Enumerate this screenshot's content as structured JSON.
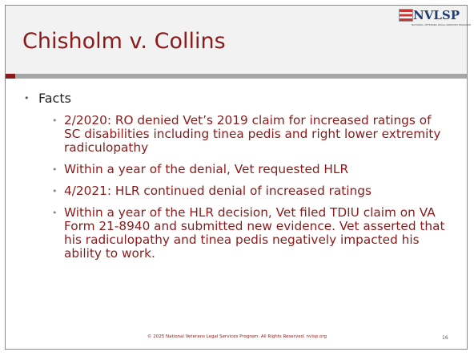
{
  "logo": "NVLSP",
  "logo_tagline": "NATIONAL VETERANS LEGAL SERVICES PROGRAM",
  "title": "Chisholm v. Collins",
  "bullet": "Facts",
  "subbullets": [
    "2/2020:  RO denied Vet’s 2019 claim for increased ratings of SC disabilities including tinea pedis and right lower extremity radiculopathy",
    "Within a year of the denial, Vet requested HLR",
    "4/2021:  HLR continued denial of increased ratings",
    "Within a year of the HLR decision, Vet filed TDIU claim on VA Form 21-8940 and submitted new evidence. Vet asserted that his radiculopathy and tinea pedis negatively impacted his ability to work."
  ],
  "footer": "© 2025 National Veterans Legal Services Program. All Rights Reserved. nvlsp.org",
  "page_number": "16"
}
